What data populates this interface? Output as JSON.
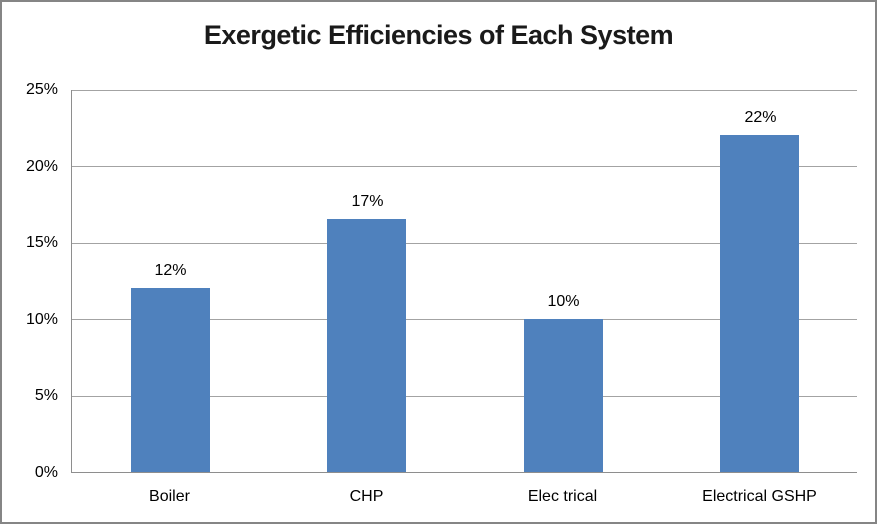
{
  "chart_data": {
    "type": "bar",
    "title": "Exergetic Efficiencies of Each System",
    "categories": [
      "Boiler",
      "CHP",
      "Elec trical",
      "Electrical GSHP"
    ],
    "values": [
      12,
      16.5,
      10,
      22
    ],
    "data_labels": [
      "12%",
      "17%",
      "10%",
      "22%"
    ],
    "xlabel": "",
    "ylabel": "",
    "ylim": [
      0,
      25
    ],
    "ytick_step": 5,
    "ytick_labels": [
      "0%",
      "5%",
      "10%",
      "15%",
      "20%",
      "25%"
    ],
    "grid": true,
    "legend": "none"
  },
  "colors": {
    "bar": "#4F81BD",
    "gridline": "#A3A3A3",
    "axis": "#8E8E8E",
    "frame_border": "#858585",
    "background": "#FFFFFF",
    "text": "#000000"
  }
}
